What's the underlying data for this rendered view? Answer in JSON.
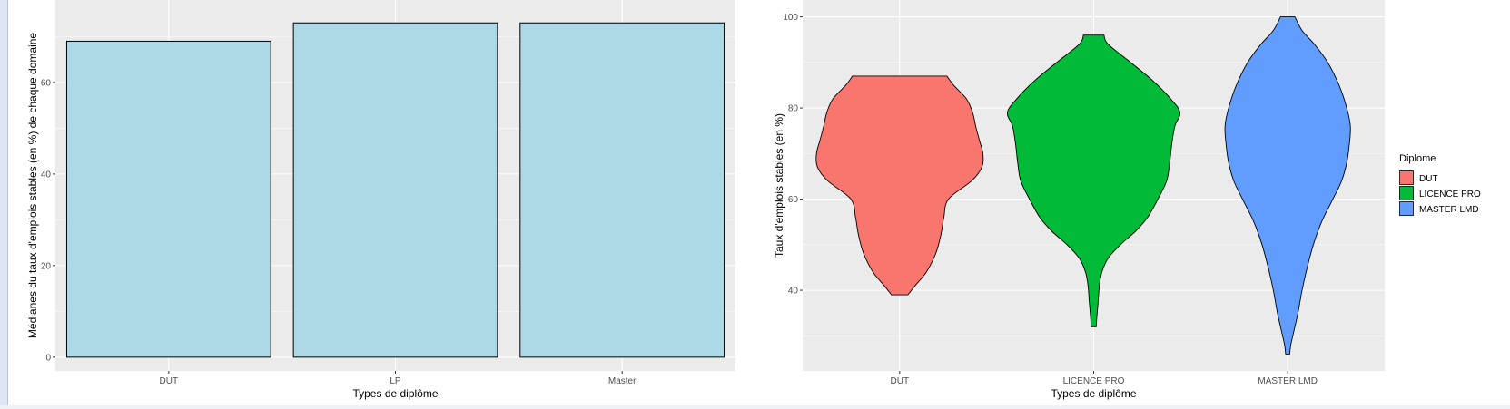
{
  "chart_data": [
    {
      "type": "bar",
      "title": "",
      "xlabel": "Types de diplôme",
      "ylabel": "Médianes du taux d'emplois stables (en %) de chaque domaine",
      "categories": [
        "DUT",
        "LP",
        "Master"
      ],
      "values": [
        69,
        73,
        73
      ],
      "ylim": [
        -3,
        78
      ],
      "yticks": [
        0,
        20,
        40,
        60
      ],
      "bar_color": "#add8e6",
      "bar_outline": "#000000",
      "panel_bg": "#ebebeb",
      "grid": true
    },
    {
      "type": "violin",
      "title": "",
      "xlabel": "Types de diplôme",
      "ylabel": "Taux d'emplois stables (en %)",
      "categories": [
        "DUT",
        "LICENCE PRO",
        "MASTER LMD"
      ],
      "ylim": [
        22.3,
        103.7
      ],
      "yticks": [
        40,
        60,
        80,
        100
      ],
      "panel_bg": "#ebebeb",
      "grid": true,
      "legend": {
        "title": "Diplome",
        "position": "right",
        "entries": [
          {
            "label": "DUT",
            "color": "#f8766d"
          },
          {
            "label": "LICENCE PRO",
            "color": "#00ba38"
          },
          {
            "label": "MASTER LMD",
            "color": "#619cff"
          }
        ]
      },
      "series": [
        {
          "name": "DUT",
          "color": "#f8766d",
          "profile": [
            [
              39,
              0.16
            ],
            [
              41,
              0.3
            ],
            [
              44,
              0.52
            ],
            [
              48,
              0.7
            ],
            [
              52,
              0.8
            ],
            [
              56,
              0.86
            ],
            [
              60,
              0.95
            ],
            [
              64,
              1.4
            ],
            [
              67,
              1.6
            ],
            [
              70,
              1.62
            ],
            [
              73,
              1.55
            ],
            [
              76,
              1.48
            ],
            [
              79,
              1.42
            ],
            [
              82,
              1.3
            ],
            [
              85,
              1.05
            ],
            [
              87,
              0.92
            ]
          ]
        },
        {
          "name": "LICENCE PRO",
          "color": "#00ba38",
          "profile": [
            [
              32,
              0.05
            ],
            [
              34,
              0.06
            ],
            [
              38,
              0.09
            ],
            [
              41,
              0.11
            ],
            [
              44,
              0.16
            ],
            [
              47,
              0.28
            ],
            [
              50,
              0.52
            ],
            [
              53,
              0.82
            ],
            [
              56,
              1.05
            ],
            [
              60,
              1.25
            ],
            [
              64,
              1.42
            ],
            [
              68,
              1.48
            ],
            [
              72,
              1.52
            ],
            [
              76,
              1.58
            ],
            [
              79,
              1.68
            ],
            [
              82,
              1.5
            ],
            [
              86,
              1.15
            ],
            [
              90,
              0.72
            ],
            [
              94,
              0.28
            ],
            [
              96,
              0.2
            ]
          ]
        },
        {
          "name": "MASTER LMD",
          "color": "#619cff",
          "profile": [
            [
              26,
              0.04
            ],
            [
              28,
              0.06
            ],
            [
              31,
              0.12
            ],
            [
              35,
              0.2
            ],
            [
              40,
              0.28
            ],
            [
              45,
              0.38
            ],
            [
              50,
              0.5
            ],
            [
              55,
              0.66
            ],
            [
              60,
              0.88
            ],
            [
              64,
              1.05
            ],
            [
              68,
              1.15
            ],
            [
              72,
              1.2
            ],
            [
              76,
              1.22
            ],
            [
              80,
              1.15
            ],
            [
              85,
              1.0
            ],
            [
              90,
              0.78
            ],
            [
              94,
              0.52
            ],
            [
              97,
              0.28
            ],
            [
              100,
              0.14
            ]
          ]
        }
      ]
    }
  ]
}
